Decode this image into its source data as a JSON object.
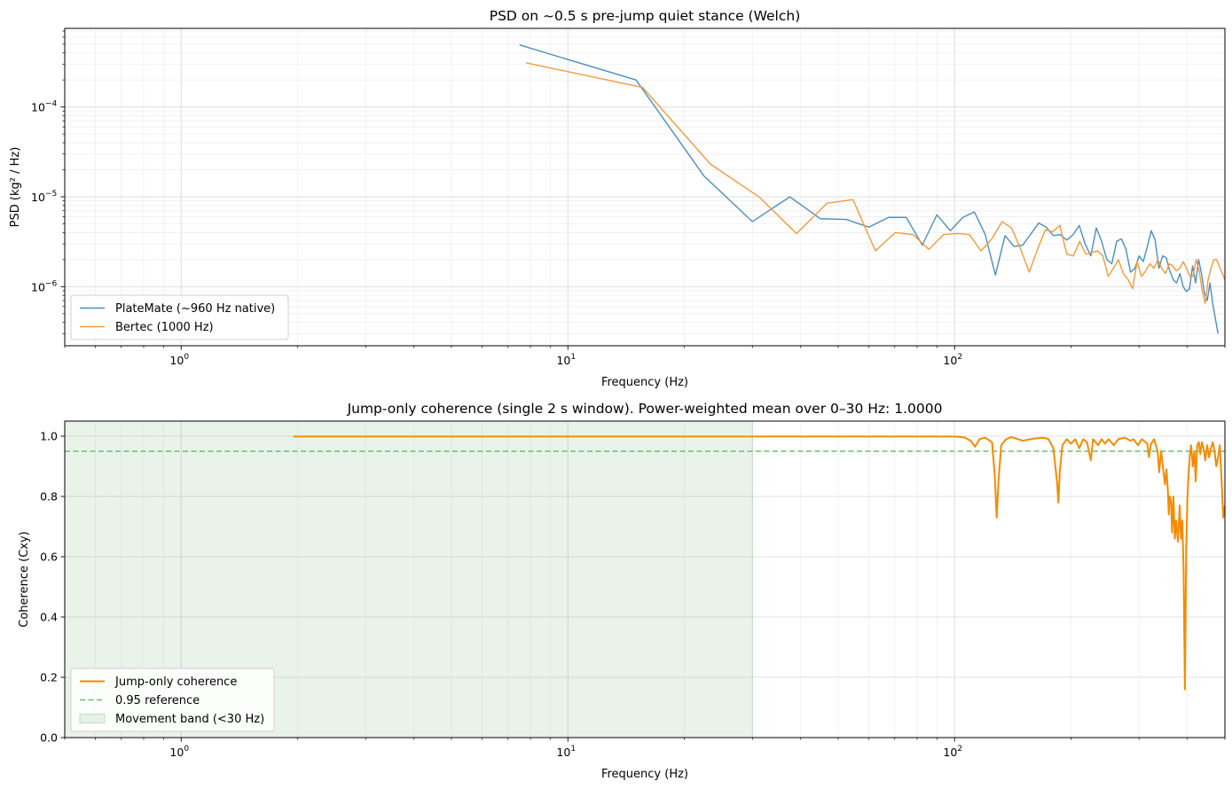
{
  "chart_data": [
    {
      "type": "line",
      "title": "PSD on ~0.5 s pre-jump quiet stance (Welch)",
      "xlabel": "Frequency (Hz)",
      "ylabel": "PSD (kg² / Hz)",
      "xscale": "log",
      "yscale": "log",
      "xlim": [
        0.5,
        500
      ],
      "ylim": [
        2.2e-07,
        0.00075
      ],
      "x_tick_labels": [
        {
          "base": "10",
          "exp": "0",
          "value": 1
        },
        {
          "base": "10",
          "exp": "1",
          "value": 10
        },
        {
          "base": "10",
          "exp": "2",
          "value": 100
        }
      ],
      "y_tick_labels": [
        {
          "base": "10",
          "exp": "−6",
          "value": 1e-06
        },
        {
          "base": "10",
          "exp": "−5",
          "value": 1e-05
        },
        {
          "base": "10",
          "exp": "−4",
          "value": 0.0001
        }
      ],
      "grid": true,
      "legend_position": "lower-left",
      "series": [
        {
          "name": "PlateMate (~960 Hz native)",
          "color": "#4a8fbf",
          "points": [
            [
              7.5,
              0.00049
            ],
            [
              15,
              0.0002
            ],
            [
              22.5,
              1.7e-05
            ],
            [
              30,
              5.3e-06
            ],
            [
              37.5,
              1e-05
            ],
            [
              45,
              5.7e-06
            ],
            [
              52.5,
              5.6e-06
            ],
            [
              60,
              4.6e-06
            ],
            [
              67.5,
              5.9e-06
            ],
            [
              75,
              5.9e-06
            ],
            [
              82.5,
              2.9e-06
            ],
            [
              90,
              6.3e-06
            ],
            [
              97.5,
              4.2e-06
            ],
            [
              105,
              5.9e-06
            ],
            [
              112.5,
              6.8e-06
            ],
            [
              120,
              3.8e-06
            ],
            [
              127.5,
              1.35e-06
            ],
            [
              135,
              3.7e-06
            ],
            [
              142.5,
              2.8e-06
            ],
            [
              150,
              2.9e-06
            ],
            [
              165,
              5.1e-06
            ],
            [
              172.5,
              4.6e-06
            ],
            [
              180,
              3.7e-06
            ],
            [
              187.5,
              3.8e-06
            ],
            [
              195,
              3.3e-06
            ],
            [
              202.5,
              3.8e-06
            ],
            [
              210,
              4.8e-06
            ],
            [
              217.5,
              3e-06
            ],
            [
              225,
              2.2e-06
            ],
            [
              232.5,
              4.5e-06
            ],
            [
              240,
              3.2e-06
            ],
            [
              247.5,
              2e-06
            ],
            [
              255,
              1.8e-06
            ],
            [
              262.5,
              3.2e-06
            ],
            [
              270,
              3.4e-06
            ],
            [
              277.5,
              2.6e-06
            ],
            [
              285,
              1.45e-06
            ],
            [
              292.5,
              1.6e-06
            ],
            [
              300,
              2.2e-06
            ],
            [
              307.5,
              1.9e-06
            ],
            [
              315,
              2.8e-06
            ],
            [
              322.5,
              4.2e-06
            ],
            [
              330,
              3.3e-06
            ],
            [
              337.5,
              1.6e-06
            ],
            [
              345,
              2.2e-06
            ],
            [
              352.5,
              2.1e-06
            ],
            [
              360,
              1.5e-06
            ],
            [
              367.5,
              1.2e-06
            ],
            [
              375,
              1.1e-06
            ],
            [
              382.5,
              1.4e-06
            ],
            [
              390,
              1e-06
            ],
            [
              397.5,
              8.8e-07
            ],
            [
              405,
              9.5e-07
            ],
            [
              412.5,
              1.7e-06
            ],
            [
              420,
              1.1e-06
            ],
            [
              427.5,
              2e-06
            ],
            [
              435,
              1.4e-06
            ],
            [
              442.5,
              8.5e-07
            ],
            [
              450,
              7e-07
            ],
            [
              457.5,
              1.1e-06
            ],
            [
              465,
              6.5e-07
            ],
            [
              480,
              3e-07
            ]
          ]
        },
        {
          "name": "Bertec (1000 Hz)",
          "color": "#f39a3c",
          "points": [
            [
              7.8,
              0.00031
            ],
            [
              15.6,
              0.000165
            ],
            [
              23.4,
              2.3e-05
            ],
            [
              31.2,
              1e-05
            ],
            [
              39,
              3.9e-06
            ],
            [
              46.8,
              8.5e-06
            ],
            [
              54.6,
              9.3e-06
            ],
            [
              62.4,
              2.5e-06
            ],
            [
              70.2,
              4e-06
            ],
            [
              78,
              3.8e-06
            ],
            [
              85.8,
              2.6e-06
            ],
            [
              93.6,
              3.8e-06
            ],
            [
              101.4,
              3.9e-06
            ],
            [
              109.2,
              3.8e-06
            ],
            [
              117,
              2.5e-06
            ],
            [
              124.8,
              3.4e-06
            ],
            [
              132.6,
              5.3e-06
            ],
            [
              140.4,
              4.5e-06
            ],
            [
              148.2,
              2.6e-06
            ],
            [
              156,
              1.45e-06
            ],
            [
              163.8,
              2.6e-06
            ],
            [
              171.6,
              4.3e-06
            ],
            [
              179.4,
              4.1e-06
            ],
            [
              187.2,
              4.8e-06
            ],
            [
              195,
              2.3e-06
            ],
            [
              202.8,
              2.2e-06
            ],
            [
              210.6,
              3.2e-06
            ],
            [
              218.4,
              2.3e-06
            ],
            [
              226.2,
              2.4e-06
            ],
            [
              234,
              2.5e-06
            ],
            [
              241.8,
              2.2e-06
            ],
            [
              249.6,
              1.3e-06
            ],
            [
              257.4,
              1.6e-06
            ],
            [
              265.2,
              2e-06
            ],
            [
              273,
              1.4e-06
            ],
            [
              280.8,
              1.2e-06
            ],
            [
              288.6,
              9.5e-07
            ],
            [
              296.4,
              1.9e-06
            ],
            [
              304.2,
              1.3e-06
            ],
            [
              312,
              1.5e-06
            ],
            [
              319.8,
              1.8e-06
            ],
            [
              327.6,
              1.6e-06
            ],
            [
              335.4,
              2e-06
            ],
            [
              343.2,
              1.6e-06
            ],
            [
              351,
              1.4e-06
            ],
            [
              358.8,
              1.8e-06
            ],
            [
              366.6,
              1.7e-06
            ],
            [
              374.4,
              1.5e-06
            ],
            [
              382.2,
              1.6e-06
            ],
            [
              390,
              1.9e-06
            ],
            [
              397.8,
              1.6e-06
            ],
            [
              405.6,
              1.3e-06
            ],
            [
              413.4,
              1.3e-06
            ],
            [
              421.2,
              2e-06
            ],
            [
              429,
              1.5e-06
            ],
            [
              436.8,
              9e-07
            ],
            [
              444.6,
              6.5e-07
            ],
            [
              452.4,
              1.2e-06
            ],
            [
              460.2,
              1.6e-06
            ],
            [
              468,
              2e-06
            ],
            [
              475.8,
              2e-06
            ],
            [
              500,
              1.2e-06
            ]
          ]
        }
      ]
    },
    {
      "type": "line",
      "title": "Jump-only coherence (single 2 s window). Power-weighted mean over 0–30 Hz: 1.0000",
      "xlabel": "Frequency (Hz)",
      "ylabel": "Coherence (Cxy)",
      "xscale": "log",
      "yscale": "linear",
      "xlim": [
        0.5,
        500
      ],
      "ylim": [
        0,
        1.05
      ],
      "x_tick_labels": [
        {
          "base": "10",
          "exp": "0",
          "value": 1
        },
        {
          "base": "10",
          "exp": "1",
          "value": 10
        },
        {
          "base": "10",
          "exp": "2",
          "value": 100
        }
      ],
      "y_ticks": [
        "0.0",
        "0.2",
        "0.4",
        "0.6",
        "0.8",
        "1.0"
      ],
      "grid": true,
      "legend_position": "lower-left",
      "band": {
        "name": "Movement band (<30 Hz)",
        "from": 0.5,
        "to": 30,
        "color": "#2e8b2e"
      },
      "reference": {
        "name": "0.95 reference",
        "y": 0.95,
        "color": "#6cbf6c"
      },
      "series": [
        {
          "name": "Jump-only coherence",
          "color": "#f28c00",
          "points": [
            [
              1.95,
              0.999
            ],
            [
              20,
              0.999
            ],
            [
              60,
              0.999
            ],
            [
              100,
              0.999
            ],
            [
              106,
              0.996
            ],
            [
              110,
              0.985
            ],
            [
              113,
              0.965
            ],
            [
              116,
              0.99
            ],
            [
              120,
              0.995
            ],
            [
              125,
              0.98
            ],
            [
              127,
              0.87
            ],
            [
              128.5,
              0.73
            ],
            [
              130,
              0.86
            ],
            [
              132,
              0.97
            ],
            [
              136,
              0.99
            ],
            [
              140,
              0.997
            ],
            [
              150,
              0.985
            ],
            [
              160,
              0.992
            ],
            [
              170,
              0.995
            ],
            [
              175,
              0.99
            ],
            [
              180,
              0.96
            ],
            [
              184,
              0.85
            ],
            [
              185.5,
              0.78
            ],
            [
              187,
              0.88
            ],
            [
              190,
              0.97
            ],
            [
              195,
              0.99
            ],
            [
              200,
              0.975
            ],
            [
              205,
              0.99
            ],
            [
              210,
              0.96
            ],
            [
              215,
              0.99
            ],
            [
              220,
              0.98
            ],
            [
              225,
              0.92
            ],
            [
              228,
              0.99
            ],
            [
              235,
              0.97
            ],
            [
              240,
              0.99
            ],
            [
              245,
              0.975
            ],
            [
              250,
              0.99
            ],
            [
              258,
              0.97
            ],
            [
              265,
              0.99
            ],
            [
              275,
              0.995
            ],
            [
              285,
              0.985
            ],
            [
              290,
              0.99
            ],
            [
              298,
              0.97
            ],
            [
              305,
              0.99
            ],
            [
              315,
              0.975
            ],
            [
              318,
              0.93
            ],
            [
              322,
              0.975
            ],
            [
              328,
              0.99
            ],
            [
              335,
              0.95
            ],
            [
              338,
              0.88
            ],
            [
              342,
              0.95
            ],
            [
              350,
              0.84
            ],
            [
              353,
              0.89
            ],
            [
              356,
              0.82
            ],
            [
              358,
              0.74
            ],
            [
              360,
              0.8
            ],
            [
              363,
              0.78
            ],
            [
              365,
              0.68
            ],
            [
              368,
              0.8
            ],
            [
              371,
              0.66
            ],
            [
              374,
              0.72
            ],
            [
              378,
              0.65
            ],
            [
              382,
              0.77
            ],
            [
              385,
              0.66
            ],
            [
              388,
              0.72
            ],
            [
              391,
              0.55
            ],
            [
              393,
              0.3
            ],
            [
              394,
              0.16
            ],
            [
              395,
              0.3
            ],
            [
              397,
              0.62
            ],
            [
              400,
              0.8
            ],
            [
              403,
              0.88
            ],
            [
              406,
              0.94
            ],
            [
              409,
              0.97
            ],
            [
              413,
              0.9
            ],
            [
              417,
              0.95
            ],
            [
              420,
              0.85
            ],
            [
              424,
              0.97
            ],
            [
              428,
              0.98
            ],
            [
              432,
              0.94
            ],
            [
              436,
              0.98
            ],
            [
              440,
              0.96
            ],
            [
              445,
              0.92
            ],
            [
              450,
              0.97
            ],
            [
              455,
              0.93
            ],
            [
              460,
              0.96
            ],
            [
              465,
              0.98
            ],
            [
              470,
              0.95
            ],
            [
              475,
              0.9
            ],
            [
              480,
              0.93
            ],
            [
              485,
              0.97
            ],
            [
              490,
              0.86
            ],
            [
              495,
              0.73
            ],
            [
              500,
              0.77
            ]
          ]
        }
      ]
    }
  ]
}
